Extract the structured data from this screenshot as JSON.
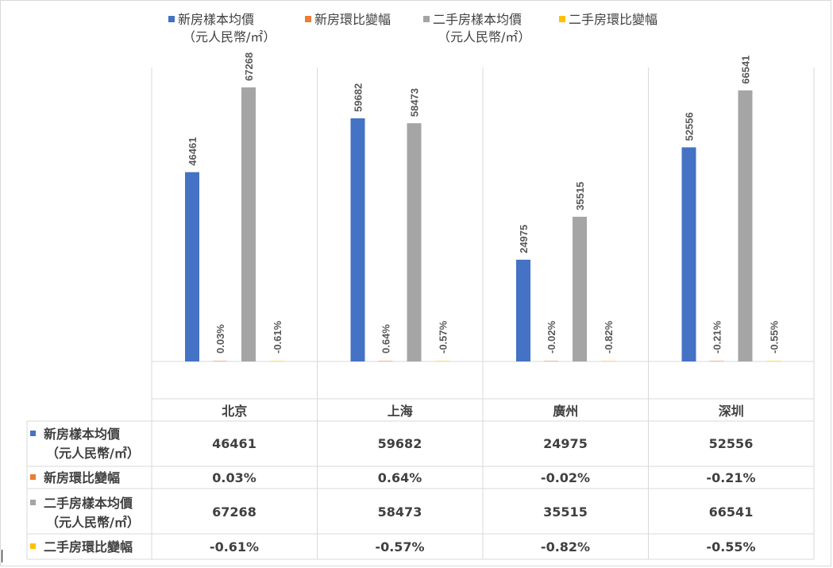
{
  "chart_data": {
    "type": "bar",
    "categories": [
      "北京",
      "上海",
      "廣州",
      "深圳"
    ],
    "series": [
      {
        "name": "新房樣本均價（元人民幣/㎡）",
        "name_line1": "新房樣本均價",
        "name_line2": "（元人民幣/㎡）",
        "color": "#4472c4",
        "values": [
          46461,
          59682,
          24975,
          52556
        ],
        "labels": [
          "46461",
          "59682",
          "24975",
          "52556"
        ]
      },
      {
        "name": "新房環比變幅",
        "color": "#ed7d31",
        "values": [
          0.03,
          0.64,
          -0.02,
          -0.21
        ],
        "labels": [
          "0.03%",
          "0.64%",
          "-0.02%",
          "-0.21%"
        ]
      },
      {
        "name": "二手房樣本均價（元人民幣/㎡）",
        "name_line1": "二手房樣本均價",
        "name_line2": "（元人民幣/㎡）",
        "color": "#a5a5a5",
        "values": [
          67268,
          58473,
          35515,
          66541
        ],
        "labels": [
          "67268",
          "58473",
          "35515",
          "66541"
        ]
      },
      {
        "name": "二手房環比變幅",
        "color": "#ffc000",
        "values": [
          -0.61,
          -0.57,
          -0.82,
          -0.55
        ],
        "labels": [
          "-0.61%",
          "-0.57%",
          "-0.82%",
          "-0.55%"
        ]
      }
    ],
    "ylim": [
      0,
      70000
    ],
    "grid": false,
    "legend_position": "top",
    "has_data_table": true
  }
}
